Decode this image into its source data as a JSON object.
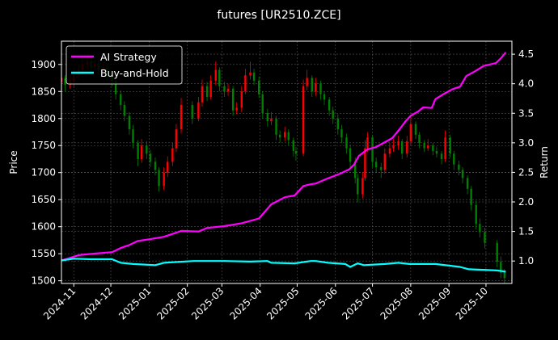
{
  "chart_data": {
    "type": "candlestick+line",
    "title": "futures [UR2510.ZCE]",
    "xlabel": "",
    "ylabel_left": "Price",
    "ylabel_right": "Return",
    "xlim": [
      "2024-10-22",
      "2025-10-22"
    ],
    "ylim_left": [
      1495,
      1943
    ],
    "ylim_right": [
      0.62,
      4.72
    ],
    "grid": true,
    "legend_position": "top-left",
    "x_tick_labels": [
      "2024-11",
      "2024-12",
      "2025-01",
      "2025-02",
      "2025-03",
      "2025-04",
      "2025-05",
      "2025-06",
      "2025-07",
      "2025-08",
      "2025-09",
      "2025-10"
    ],
    "y_left_ticks": [
      "1500",
      "1550",
      "1600",
      "1650",
      "1700",
      "1750",
      "1800",
      "1850",
      "1900"
    ],
    "y_right_ticks": [
      "1.0",
      "1.5",
      "2.0",
      "2.5",
      "3.0",
      "3.5",
      "4.0",
      "4.5"
    ],
    "colors": {
      "background": "#000000",
      "up": "#ff0000",
      "down": "#008000",
      "ai": "#ff00ff",
      "bh": "#00ffff"
    },
    "candles_format": [
      "date",
      "open",
      "high",
      "low",
      "close"
    ],
    "candles": [
      [
        "2024-10-22",
        1868,
        1885,
        1855,
        1875
      ],
      [
        "2024-10-25",
        1875,
        1880,
        1850,
        1862
      ],
      [
        "2024-10-29",
        1862,
        1878,
        1855,
        1868
      ],
      [
        "2024-11-01",
        1868,
        1892,
        1860,
        1880
      ],
      [
        "2024-11-05",
        1880,
        1900,
        1872,
        1890
      ],
      [
        "2024-11-08",
        1890,
        1912,
        1882,
        1900
      ],
      [
        "2024-11-12",
        1900,
        1918,
        1890,
        1905
      ],
      [
        "2024-11-15",
        1905,
        1912,
        1885,
        1895
      ],
      [
        "2024-11-18",
        1895,
        1910,
        1888,
        1900
      ],
      [
        "2024-11-21",
        1900,
        1906,
        1880,
        1890
      ],
      [
        "2024-11-25",
        1890,
        1905,
        1882,
        1895
      ],
      [
        "2024-11-28",
        1895,
        1900,
        1870,
        1880
      ],
      [
        "2024-12-02",
        1880,
        1888,
        1860,
        1870
      ],
      [
        "2024-12-05",
        1870,
        1875,
        1835,
        1845
      ],
      [
        "2024-12-09",
        1845,
        1852,
        1815,
        1825
      ],
      [
        "2024-12-12",
        1825,
        1832,
        1795,
        1805
      ],
      [
        "2024-12-16",
        1805,
        1812,
        1770,
        1780
      ],
      [
        "2024-12-19",
        1780,
        1788,
        1745,
        1755
      ],
      [
        "2024-12-23",
        1755,
        1760,
        1712,
        1725
      ],
      [
        "2024-12-26",
        1725,
        1762,
        1718,
        1750
      ],
      [
        "2024-12-30",
        1750,
        1758,
        1725,
        1735
      ],
      [
        "2025-01-02",
        1735,
        1742,
        1710,
        1720
      ],
      [
        "2025-01-06",
        1720,
        1728,
        1695,
        1705
      ],
      [
        "2025-01-09",
        1705,
        1710,
        1665,
        1675
      ],
      [
        "2025-01-13",
        1675,
        1710,
        1668,
        1700
      ],
      [
        "2025-01-16",
        1700,
        1730,
        1692,
        1720
      ],
      [
        "2025-01-20",
        1720,
        1755,
        1712,
        1745
      ],
      [
        "2025-01-23",
        1745,
        1790,
        1738,
        1780
      ],
      [
        "2025-01-27",
        1780,
        1838,
        1772,
        1825
      ],
      [
        "2025-02-05",
        1825,
        1832,
        1790,
        1800
      ],
      [
        "2025-02-10",
        1800,
        1840,
        1795,
        1830
      ],
      [
        "2025-02-13",
        1830,
        1872,
        1822,
        1860
      ],
      [
        "2025-02-17",
        1860,
        1868,
        1832,
        1840
      ],
      [
        "2025-02-20",
        1840,
        1880,
        1835,
        1870
      ],
      [
        "2025-02-24",
        1870,
        1905,
        1862,
        1890
      ],
      [
        "2025-02-27",
        1890,
        1895,
        1850,
        1860
      ],
      [
        "2025-03-03",
        1860,
        1868,
        1840,
        1850
      ],
      [
        "2025-03-06",
        1850,
        1865,
        1842,
        1855
      ],
      [
        "2025-03-10",
        1855,
        1860,
        1805,
        1815
      ],
      [
        "2025-03-13",
        1815,
        1830,
        1808,
        1820
      ],
      [
        "2025-03-17",
        1820,
        1860,
        1812,
        1850
      ],
      [
        "2025-03-20",
        1850,
        1892,
        1845,
        1880
      ],
      [
        "2025-03-24",
        1880,
        1905,
        1872,
        1885
      ],
      [
        "2025-03-27",
        1885,
        1892,
        1862,
        1870
      ],
      [
        "2025-03-31",
        1870,
        1878,
        1838,
        1845
      ],
      [
        "2025-04-03",
        1845,
        1850,
        1800,
        1810
      ],
      [
        "2025-04-07",
        1810,
        1818,
        1785,
        1795
      ],
      [
        "2025-04-10",
        1795,
        1812,
        1788,
        1800
      ],
      [
        "2025-04-14",
        1800,
        1805,
        1760,
        1770
      ],
      [
        "2025-04-17",
        1770,
        1778,
        1755,
        1765
      ],
      [
        "2025-04-21",
        1765,
        1785,
        1758,
        1775
      ],
      [
        "2025-04-24",
        1775,
        1780,
        1750,
        1760
      ],
      [
        "2025-04-28",
        1760,
        1765,
        1730,
        1740
      ],
      [
        "2025-04-30",
        1740,
        1748,
        1722,
        1735
      ],
      [
        "2025-05-06",
        1735,
        1872,
        1730,
        1860
      ],
      [
        "2025-05-09",
        1860,
        1890,
        1852,
        1875
      ],
      [
        "2025-05-13",
        1875,
        1880,
        1840,
        1850
      ],
      [
        "2025-05-16",
        1850,
        1875,
        1842,
        1865
      ],
      [
        "2025-05-20",
        1865,
        1870,
        1835,
        1845
      ],
      [
        "2025-05-23",
        1845,
        1850,
        1825,
        1835
      ],
      [
        "2025-05-27",
        1835,
        1840,
        1805,
        1815
      ],
      [
        "2025-05-30",
        1815,
        1822,
        1790,
        1800
      ],
      [
        "2025-06-03",
        1800,
        1808,
        1770,
        1780
      ],
      [
        "2025-06-06",
        1780,
        1788,
        1755,
        1765
      ],
      [
        "2025-06-10",
        1765,
        1772,
        1735,
        1745
      ],
      [
        "2025-06-13",
        1745,
        1752,
        1710,
        1720
      ],
      [
        "2025-06-17",
        1720,
        1728,
        1680,
        1690
      ],
      [
        "2025-06-19",
        1690,
        1698,
        1645,
        1660
      ],
      [
        "2025-06-23",
        1660,
        1700,
        1652,
        1690
      ],
      [
        "2025-06-25",
        1690,
        1760,
        1685,
        1745
      ],
      [
        "2025-06-27",
        1745,
        1775,
        1738,
        1765
      ],
      [
        "2025-07-01",
        1765,
        1770,
        1710,
        1720
      ],
      [
        "2025-07-04",
        1720,
        1728,
        1700,
        1710
      ],
      [
        "2025-07-08",
        1710,
        1718,
        1690,
        1705
      ],
      [
        "2025-07-11",
        1705,
        1745,
        1698,
        1735
      ],
      [
        "2025-07-15",
        1735,
        1755,
        1728,
        1745
      ],
      [
        "2025-07-18",
        1745,
        1762,
        1738,
        1750
      ],
      [
        "2025-07-22",
        1750,
        1768,
        1742,
        1758
      ],
      [
        "2025-07-25",
        1758,
        1762,
        1725,
        1735
      ],
      [
        "2025-07-29",
        1735,
        1768,
        1728,
        1758
      ],
      [
        "2025-08-01",
        1758,
        1805,
        1750,
        1790
      ],
      [
        "2025-08-05",
        1790,
        1795,
        1762,
        1770
      ],
      [
        "2025-08-08",
        1770,
        1775,
        1745,
        1755
      ],
      [
        "2025-08-12",
        1755,
        1760,
        1738,
        1745
      ],
      [
        "2025-08-15",
        1745,
        1762,
        1740,
        1750
      ],
      [
        "2025-08-19",
        1750,
        1755,
        1732,
        1740
      ],
      [
        "2025-08-22",
        1740,
        1748,
        1728,
        1735
      ],
      [
        "2025-08-26",
        1735,
        1740,
        1715,
        1725
      ],
      [
        "2025-08-29",
        1725,
        1778,
        1720,
        1765
      ],
      [
        "2025-09-02",
        1765,
        1770,
        1728,
        1735
      ],
      [
        "2025-09-05",
        1735,
        1740,
        1705,
        1715
      ],
      [
        "2025-09-09",
        1715,
        1722,
        1695,
        1705
      ],
      [
        "2025-09-12",
        1705,
        1710,
        1680,
        1690
      ],
      [
        "2025-09-16",
        1690,
        1695,
        1660,
        1670
      ],
      [
        "2025-09-19",
        1670,
        1675,
        1630,
        1640
      ],
      [
        "2025-09-23",
        1640,
        1648,
        1595,
        1605
      ],
      [
        "2025-09-26",
        1605,
        1615,
        1580,
        1590
      ],
      [
        "2025-09-30",
        1590,
        1598,
        1560,
        1570
      ],
      [
        "2025-10-10",
        1570,
        1575,
        1525,
        1535
      ],
      [
        "2025-10-13",
        1535,
        1545,
        1505,
        1515
      ],
      [
        "2025-10-16",
        1515,
        1522,
        1495,
        1505
      ]
    ],
    "series": [
      {
        "name": "AI Strategy",
        "color": "#ff00ff",
        "points": [
          [
            "2024-10-22",
            1.01
          ],
          [
            "2024-11-05",
            1.1
          ],
          [
            "2024-11-15",
            1.12
          ],
          [
            "2024-12-02",
            1.15
          ],
          [
            "2024-12-09",
            1.22
          ],
          [
            "2024-12-16",
            1.27
          ],
          [
            "2024-12-23",
            1.34
          ],
          [
            "2025-01-02",
            1.37
          ],
          [
            "2025-01-13",
            1.41
          ],
          [
            "2025-01-23",
            1.48
          ],
          [
            "2025-01-27",
            1.51
          ],
          [
            "2025-02-10",
            1.5
          ],
          [
            "2025-02-17",
            1.56
          ],
          [
            "2025-03-03",
            1.59
          ],
          [
            "2025-03-17",
            1.64
          ],
          [
            "2025-03-31",
            1.72
          ],
          [
            "2025-04-03",
            1.79
          ],
          [
            "2025-04-10",
            1.96
          ],
          [
            "2025-04-21",
            2.08
          ],
          [
            "2025-04-29",
            2.11
          ],
          [
            "2025-05-06",
            2.27
          ],
          [
            "2025-05-12",
            2.3
          ],
          [
            "2025-05-16",
            2.31
          ],
          [
            "2025-05-26",
            2.4
          ],
          [
            "2025-06-05",
            2.48
          ],
          [
            "2025-06-12",
            2.55
          ],
          [
            "2025-06-16",
            2.63
          ],
          [
            "2025-06-20",
            2.78
          ],
          [
            "2025-06-27",
            2.89
          ],
          [
            "2025-07-04",
            2.93
          ],
          [
            "2025-07-11",
            3.01
          ],
          [
            "2025-07-17",
            3.08
          ],
          [
            "2025-07-23",
            3.23
          ],
          [
            "2025-07-28",
            3.37
          ],
          [
            "2025-08-01",
            3.46
          ],
          [
            "2025-08-07",
            3.53
          ],
          [
            "2025-08-11",
            3.6
          ],
          [
            "2025-08-18",
            3.59
          ],
          [
            "2025-08-21",
            3.74
          ],
          [
            "2025-08-28",
            3.83
          ],
          [
            "2025-09-04",
            3.91
          ],
          [
            "2025-09-10",
            3.95
          ],
          [
            "2025-09-15",
            4.13
          ],
          [
            "2025-09-22",
            4.21
          ],
          [
            "2025-09-29",
            4.3
          ],
          [
            "2025-10-09",
            4.35
          ],
          [
            "2025-10-13",
            4.43
          ],
          [
            "2025-10-17",
            4.53
          ]
        ]
      },
      {
        "name": "Buy-and-Hold",
        "color": "#00ffff",
        "points": [
          [
            "2024-10-22",
            1.01
          ],
          [
            "2024-11-01",
            1.04
          ],
          [
            "2024-11-15",
            1.03
          ],
          [
            "2024-12-02",
            1.03
          ],
          [
            "2024-12-09",
            0.97
          ],
          [
            "2024-12-19",
            0.95
          ],
          [
            "2025-01-06",
            0.93
          ],
          [
            "2025-01-13",
            0.97
          ],
          [
            "2025-02-06",
            1.0
          ],
          [
            "2025-03-03",
            1.0
          ],
          [
            "2025-03-24",
            0.99
          ],
          [
            "2025-04-07",
            1.0
          ],
          [
            "2025-04-10",
            0.97
          ],
          [
            "2025-04-29",
            0.96
          ],
          [
            "2025-05-12",
            1.0
          ],
          [
            "2025-05-16",
            1.0
          ],
          [
            "2025-05-26",
            0.97
          ],
          [
            "2025-06-09",
            0.95
          ],
          [
            "2025-06-13",
            0.9
          ],
          [
            "2025-06-19",
            0.96
          ],
          [
            "2025-06-24",
            0.93
          ],
          [
            "2025-07-11",
            0.95
          ],
          [
            "2025-07-22",
            0.97
          ],
          [
            "2025-07-31",
            0.95
          ],
          [
            "2025-08-21",
            0.95
          ],
          [
            "2025-09-10",
            0.9
          ],
          [
            "2025-09-17",
            0.86
          ],
          [
            "2025-10-10",
            0.84
          ],
          [
            "2025-10-17",
            0.82
          ]
        ]
      }
    ]
  }
}
